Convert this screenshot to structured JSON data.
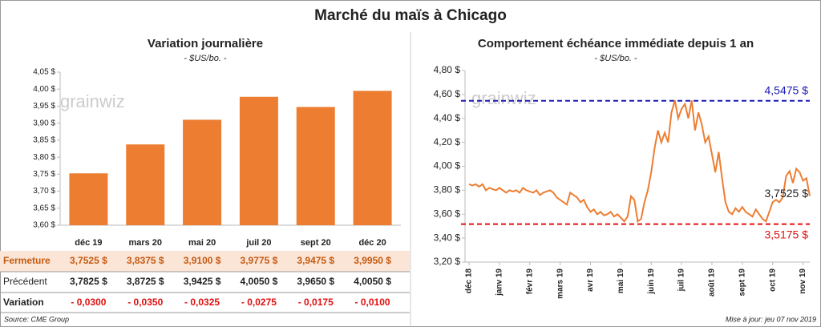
{
  "title": "Marché du maïs à Chicago",
  "watermark": "grainwiz",
  "source": "Source: CME Group",
  "updated": "Mise à jour: jeu 07 nov 2019",
  "chart_data": [
    {
      "type": "bar",
      "title": "Variation journalière",
      "subtitle": "- $US/bo. -",
      "categories": [
        "déc 19",
        "mars 20",
        "mai 20",
        "juil 20",
        "sept 20",
        "déc 20"
      ],
      "values": [
        3.7525,
        3.8375,
        3.91,
        3.9775,
        3.9475,
        3.995
      ],
      "color": "#ed7d31",
      "ylim": [
        3.6,
        4.05
      ],
      "yticks": [
        {
          "value": 3.6,
          "label": "3,60 $"
        },
        {
          "value": 3.65,
          "label": "3,65 $"
        },
        {
          "value": 3.7,
          "label": "3,70 $"
        },
        {
          "value": 3.75,
          "label": "3,75 $"
        },
        {
          "value": 3.8,
          "label": "3,80 $"
        },
        {
          "value": 3.85,
          "label": "3,85 $"
        },
        {
          "value": 3.9,
          "label": "3,90 $"
        },
        {
          "value": 3.95,
          "label": "3,95 $"
        },
        {
          "value": 4.0,
          "label": "4,00 $"
        },
        {
          "value": 4.05,
          "label": "4,05 $"
        }
      ]
    },
    {
      "type": "line",
      "title": "Comportement échéance immédiate depuis 1 an",
      "subtitle": "- $US/bo. -",
      "categories": [
        "déc 18",
        null,
        null,
        null,
        null,
        null,
        null,
        null,
        null,
        "janv 19",
        null,
        null,
        null,
        null,
        null,
        null,
        null,
        null,
        "févr 19",
        null,
        null,
        null,
        null,
        null,
        null,
        null,
        null,
        "mars 19",
        null,
        null,
        null,
        null,
        null,
        null,
        null,
        null,
        "avr 19",
        null,
        null,
        null,
        null,
        null,
        null,
        null,
        null,
        "mai 19",
        null,
        null,
        null,
        null,
        null,
        null,
        null,
        null,
        "juin 19",
        null,
        null,
        null,
        null,
        null,
        null,
        null,
        null,
        "juil 19",
        null,
        null,
        null,
        null,
        null,
        null,
        null,
        null,
        "août 19",
        null,
        null,
        null,
        null,
        null,
        null,
        null,
        null,
        "sept 19",
        null,
        null,
        null,
        null,
        null,
        null,
        null,
        null,
        "oct 19",
        null,
        null,
        null,
        null,
        null,
        null,
        null,
        null,
        "nov 19",
        null,
        null
      ],
      "values": [
        3.85,
        3.84,
        3.85,
        3.83,
        3.85,
        3.8,
        3.82,
        3.81,
        3.8,
        3.82,
        3.8,
        3.78,
        3.8,
        3.79,
        3.8,
        3.78,
        3.82,
        3.8,
        3.79,
        3.78,
        3.8,
        3.76,
        3.78,
        3.79,
        3.8,
        3.78,
        3.74,
        3.72,
        3.7,
        3.68,
        3.78,
        3.76,
        3.74,
        3.7,
        3.72,
        3.66,
        3.62,
        3.64,
        3.6,
        3.62,
        3.59,
        3.6,
        3.62,
        3.58,
        3.6,
        3.57,
        3.54,
        3.58,
        3.75,
        3.72,
        3.54,
        3.56,
        3.7,
        3.8,
        3.95,
        4.15,
        4.3,
        4.2,
        4.28,
        4.2,
        4.45,
        4.55,
        4.4,
        4.48,
        4.52,
        4.4,
        4.55,
        4.3,
        4.45,
        4.35,
        4.2,
        4.25,
        4.1,
        3.95,
        4.12,
        3.9,
        3.7,
        3.62,
        3.6,
        3.65,
        3.62,
        3.66,
        3.62,
        3.6,
        3.58,
        3.64,
        3.6,
        3.56,
        3.54,
        3.62,
        3.7,
        3.72,
        3.7,
        3.74,
        3.92,
        3.96,
        3.86,
        3.98,
        3.95,
        3.88,
        3.9,
        3.7525
      ],
      "color": "#ed7d31",
      "end_label": "3,7525 $",
      "ref_lines": [
        {
          "value": 4.5475,
          "label": "4,5475 $",
          "color": "#1a1ab8"
        },
        {
          "value": 3.5175,
          "label": "3,5175 $",
          "color": "#e01010"
        }
      ],
      "ylim": [
        3.2,
        4.8
      ],
      "yticks": [
        {
          "value": 3.2,
          "label": "3,20 $"
        },
        {
          "value": 3.4,
          "label": "3,40 $"
        },
        {
          "value": 3.6,
          "label": "3,60 $"
        },
        {
          "value": 3.8,
          "label": "3,80 $"
        },
        {
          "value": 4.0,
          "label": "4,00 $"
        },
        {
          "value": 4.2,
          "label": "4,20 $"
        },
        {
          "value": 4.4,
          "label": "4,40 $"
        },
        {
          "value": 4.6,
          "label": "4,60 $"
        },
        {
          "value": 4.8,
          "label": "4,80 $"
        }
      ]
    }
  ],
  "table": {
    "rows": [
      [
        "Fermeture",
        "3,7525 $",
        "3,8375 $",
        "3,9100 $",
        "3,9775 $",
        "3,9475 $",
        "3,9950 $"
      ],
      [
        "Précédent",
        "3,7825 $",
        "3,8725 $",
        "3,9425 $",
        "4,0050 $",
        "3,9650 $",
        "4,0050 $"
      ],
      [
        "Variation",
        "- 0,0300",
        "- 0,0350",
        "- 0,0325",
        "- 0,0275",
        "- 0,0175",
        "- 0,0100"
      ]
    ]
  }
}
